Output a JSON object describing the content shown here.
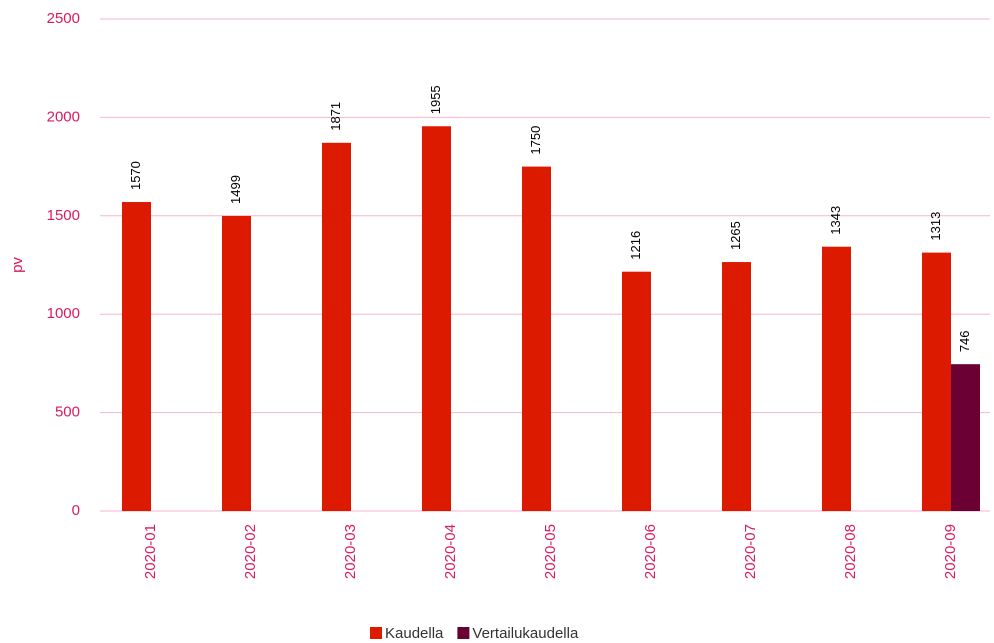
{
  "chart_data": {
    "type": "bar",
    "ylabel": "pv",
    "categories": [
      "2020-01",
      "2020-02",
      "2020-03",
      "2020-04",
      "2020-05",
      "2020-06",
      "2020-07",
      "2020-08",
      "2020-09"
    ],
    "series": [
      {
        "name": "Kaudella",
        "color": "#dc1a00",
        "values": [
          1570,
          1499,
          1871,
          1955,
          1750,
          1216,
          1265,
          1343,
          1313
        ]
      },
      {
        "name": "Vertailukaudella",
        "color": "#6b0032",
        "values": [
          null,
          null,
          null,
          null,
          null,
          null,
          null,
          null,
          746
        ]
      }
    ],
    "ylim": [
      0,
      2500
    ],
    "yticks": [
      0,
      500,
      1000,
      1500,
      2000,
      2500
    ],
    "grid": true,
    "legend": "bottom"
  }
}
